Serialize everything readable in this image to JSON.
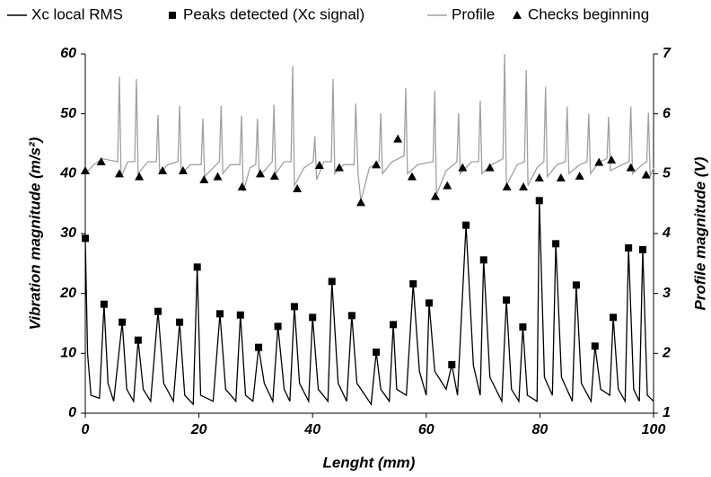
{
  "chart_data": {
    "type": "line",
    "xlabel": "Lenght (mm)",
    "ylabel": "Vibration magnitude (m/s²)",
    "y2label": "Profile magnitude (V)",
    "xlim": [
      0,
      100
    ],
    "xticks": [
      0,
      20,
      40,
      60,
      80,
      100
    ],
    "ylim": [
      0,
      60
    ],
    "yticks": [
      0,
      10,
      20,
      30,
      40,
      50,
      60
    ],
    "y2lim": [
      1,
      7
    ],
    "y2ticks": [
      1,
      2,
      3,
      4,
      5,
      6,
      7
    ],
    "grid": false,
    "legend": "top",
    "series": [
      {
        "name": "Xc local RMS",
        "color": "#000000",
        "mode": "line",
        "axis": "y",
        "x": [
          0,
          0.4,
          1,
          2.5,
          3.3,
          4,
          5,
          6.5,
          7.3,
          8.5,
          9.3,
          10.2,
          11.5,
          12.8,
          13.8,
          15.5,
          16.6,
          17.5,
          19,
          19.7,
          20.3,
          22.5,
          23.7,
          24.7,
          26.5,
          27.3,
          28.2,
          29.5,
          30.5,
          31.5,
          33,
          33.9,
          35,
          36,
          36.8,
          37.7,
          39.3,
          40,
          41,
          42.7,
          43.4,
          44.5,
          46,
          46.9,
          47.8,
          50.3,
          51.2,
          52,
          53.5,
          54.2,
          54.8,
          56.5,
          57.7,
          58.8,
          60,
          60.5,
          61.5,
          63.5,
          64.5,
          65.5,
          67,
          68.3,
          69.5,
          70.1,
          71.2,
          73.3,
          74.1,
          75,
          76.3,
          77,
          77.8,
          79.5,
          79.9,
          80.8,
          82.2,
          82.8,
          83.8,
          85.7,
          86.4,
          87.3,
          89,
          89.7,
          90.7,
          92.3,
          92.9,
          93.8,
          95,
          95.6,
          96.5,
          97.5,
          98.1,
          98.9,
          100
        ],
        "values": [
          29.2,
          10,
          3,
          2.5,
          18.2,
          5,
          2,
          15.2,
          4,
          2,
          12.2,
          4,
          2,
          17,
          5,
          2,
          15.2,
          3,
          1.5,
          24.4,
          3,
          2,
          16.6,
          4,
          2,
          16.4,
          3,
          2,
          11,
          5,
          2,
          14.5,
          4,
          2,
          17.8,
          5,
          2,
          16,
          4,
          2,
          22,
          5,
          2,
          16.3,
          5,
          1.5,
          10.2,
          4,
          2,
          14.8,
          4,
          3,
          21.6,
          7,
          3,
          18.4,
          7,
          4,
          8.1,
          3,
          31.4,
          8,
          3,
          25.6,
          6,
          2,
          18.9,
          4,
          2,
          14.4,
          3,
          2,
          35.5,
          6,
          3,
          28.3,
          6,
          2,
          21.4,
          5,
          2,
          11.2,
          4,
          3,
          16,
          4,
          2,
          27.6,
          4,
          2,
          27.3,
          3,
          2
        ]
      },
      {
        "name": "Peaks detected (Xc signal)",
        "color": "#000000",
        "mode": "markers",
        "marker": "square",
        "axis": "y",
        "x": [
          0,
          3.3,
          6.5,
          9.3,
          12.8,
          16.6,
          19.7,
          23.7,
          27.3,
          30.5,
          33.9,
          36.8,
          40,
          43.4,
          46.9,
          51.2,
          54.2,
          57.7,
          60.5,
          64.5,
          67,
          70.1,
          74.1,
          77,
          79.9,
          82.8,
          86.4,
          89.7,
          92.9,
          95.6,
          98.1
        ],
        "values": [
          29.2,
          18.2,
          15.2,
          12.2,
          17,
          15.2,
          24.4,
          16.6,
          16.4,
          11,
          14.5,
          17.8,
          16,
          22,
          16.3,
          10.2,
          14.8,
          21.6,
          18.4,
          8.1,
          31.4,
          25.6,
          18.9,
          14.4,
          35.5,
          28.3,
          21.4,
          11.2,
          16,
          27.6,
          27.3
        ]
      },
      {
        "name": "Profile",
        "color": "#a0a0a0",
        "mode": "line",
        "axis": "y2",
        "x": [
          0,
          1.5,
          3,
          5.7,
          6,
          6.3,
          7.5,
          8.7,
          9,
          9.3,
          11,
          12.5,
          12.8,
          13.1,
          14.5,
          16.3,
          16.6,
          16.9,
          18.5,
          20.4,
          20.7,
          21,
          22.5,
          23.6,
          23.9,
          24.2,
          25.5,
          27.2,
          27.5,
          27.8,
          29,
          30,
          30.3,
          30.6,
          32,
          32.9,
          33.2,
          33.5,
          35,
          36.2,
          36.5,
          36.8,
          38.5,
          40.1,
          40.4,
          40.7,
          42,
          43.3,
          43.6,
          43.9,
          45.5,
          47.3,
          47.6,
          48,
          48.5,
          50,
          51.7,
          52,
          52.3,
          54,
          56.1,
          56.4,
          56.7,
          58.5,
          61.2,
          61.5,
          61.8,
          63.5,
          65.4,
          65.7,
          66,
          68,
          69.2,
          69.5,
          69.8,
          71.5,
          73.5,
          73.8,
          74.1,
          76,
          77.3,
          77.6,
          77.9,
          79.5,
          80.7,
          81,
          81.3,
          83,
          84.5,
          84.8,
          85.1,
          87,
          88.3,
          88.6,
          88.9,
          90.5,
          91.8,
          92.1,
          92.4,
          94.5,
          95.7,
          96,
          96.3,
          98,
          98.8,
          99.1,
          99.4,
          100
        ],
        "values": [
          5.0,
          5.15,
          5.25,
          5.2,
          6.62,
          4.95,
          5.2,
          5.2,
          6.58,
          5.0,
          5.2,
          5.2,
          5.98,
          5.0,
          5.15,
          5.2,
          6.13,
          5.0,
          5.15,
          5.15,
          5.92,
          4.95,
          5.1,
          5.2,
          6.13,
          5.0,
          5.15,
          5.15,
          5.97,
          4.7,
          5.1,
          5.15,
          5.92,
          4.95,
          5.1,
          5.2,
          6.15,
          5.0,
          5.2,
          5.2,
          6.8,
          4.8,
          5.1,
          5.2,
          5.62,
          4.9,
          5.2,
          5.2,
          6.58,
          5.0,
          5.15,
          5.15,
          6.17,
          5.0,
          4.55,
          5.1,
          5.2,
          6.01,
          5.0,
          5.2,
          5.3,
          6.43,
          5.0,
          5.15,
          5.2,
          6.38,
          4.65,
          5.05,
          5.2,
          6.01,
          5.0,
          5.2,
          5.2,
          6.22,
          5.0,
          5.15,
          5.25,
          7.0,
          4.8,
          5.15,
          5.2,
          6.73,
          4.8,
          5.1,
          5.2,
          6.45,
          4.95,
          5.15,
          5.2,
          6.12,
          5.0,
          5.15,
          5.2,
          6.0,
          5.0,
          5.2,
          5.25,
          5.95,
          5.05,
          5.15,
          5.2,
          6.12,
          5.0,
          5.15,
          5.2,
          6.02,
          4.95,
          5.1
        ]
      },
      {
        "name": "Checks beginning",
        "color": "#000000",
        "mode": "markers",
        "marker": "triangle",
        "axis": "y2",
        "x": [
          0,
          2.8,
          6,
          9.5,
          13.6,
          17.2,
          20.9,
          23.3,
          27.6,
          30.8,
          33.3,
          37.3,
          41.2,
          44.7,
          48.5,
          51.2,
          55,
          57.5,
          61.6,
          63.7,
          66.4,
          71.2,
          74.2,
          77.1,
          79.9,
          83.7,
          87,
          90.4,
          92.6,
          96,
          98.7
        ],
        "values": [
          5.05,
          5.2,
          5.0,
          4.95,
          5.05,
          5.05,
          4.9,
          4.95,
          4.78,
          5.0,
          4.96,
          4.75,
          5.14,
          5.1,
          4.52,
          5.15,
          5.58,
          4.95,
          4.62,
          4.8,
          5.1,
          5.1,
          4.78,
          4.78,
          4.93,
          4.93,
          4.96,
          5.19,
          5.23,
          5.1,
          4.98
        ]
      }
    ]
  }
}
